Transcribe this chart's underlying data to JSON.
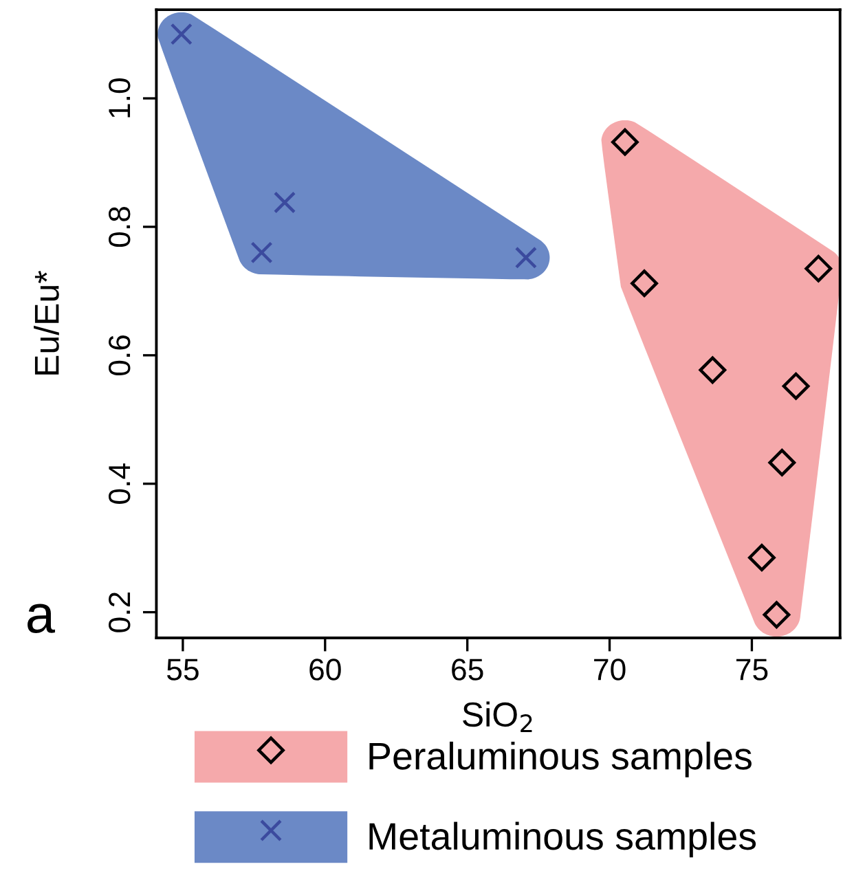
{
  "chart_data": {
    "type": "scatter",
    "xlabel": "SiO$_{2}$",
    "ylabel": "Eu/Eu*",
    "xlim": [
      54.07,
      78.1
    ],
    "ylim": [
      0.16,
      1.138
    ],
    "xticks": [
      55,
      60,
      65,
      70,
      75
    ],
    "yticks": [
      {
        "value": 0.2,
        "label": "0.2"
      },
      {
        "value": 0.4,
        "label": "0.4"
      },
      {
        "value": 0.6,
        "label": "0.6"
      },
      {
        "value": 0.8,
        "label": "0.8"
      },
      {
        "value": 1.0,
        "label": "1.0"
      }
    ],
    "legend": "bottom",
    "grid": false,
    "annotations": [
      "a"
    ],
    "series": [
      {
        "name": "Peraluminous samples",
        "color": "#000000",
        "marker": "diamond",
        "x": [
          70.54,
          71.22,
          73.62,
          77.34,
          76.55,
          76.06,
          75.35,
          75.87
        ],
        "values": [
          0.932,
          0.712,
          0.577,
          0.735,
          0.552,
          0.433,
          0.285,
          0.196
        ]
      },
      {
        "name": "Metaluminous samples",
        "color": "#3b4a9e",
        "marker": "cross",
        "x": [
          54.95,
          58.58,
          57.77,
          67.06
        ],
        "values": [
          1.1,
          0.838,
          0.76,
          0.752
        ]
      }
    ]
  }
}
